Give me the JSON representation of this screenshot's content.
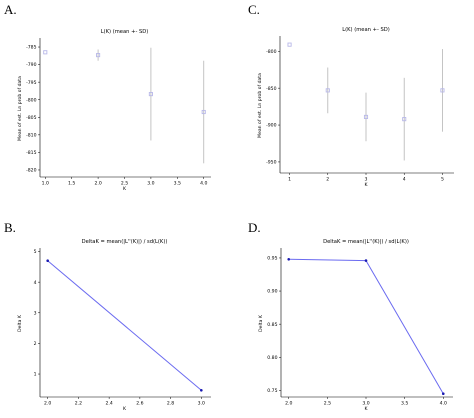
{
  "chart_data": [
    {
      "panel": "A.",
      "type": "scatter",
      "title": "L(K) (mean +- SD)",
      "xlabel": "K",
      "ylabel": "Mean of est. Ln prob of data",
      "xlim": [
        0.9,
        4.1
      ],
      "ylim": [
        -822,
        -783
      ],
      "xticks": [
        "1.0",
        "1.5",
        "2.0",
        "2.5",
        "3.0",
        "3.5",
        "4.0"
      ],
      "yticks": [
        "-785",
        "-790",
        "-795",
        "-800",
        "-805",
        "-810",
        "-815",
        "-820"
      ],
      "x": [
        1,
        2,
        3,
        4
      ],
      "y": [
        -786.5,
        -787.3,
        -798.4,
        -803.5
      ],
      "sd": [
        0.3,
        1.6,
        13.2,
        14.6
      ],
      "color": "#b8b8e8",
      "errorbar_color": "#bdbdbd"
    },
    {
      "panel": "C.",
      "type": "scatter",
      "title": "L(K) (mean +- SD)",
      "xlabel": "K",
      "ylabel": "Mean of est. Ln prob of data",
      "xlim": [
        0.75,
        5.25
      ],
      "ylim": [
        -965,
        -782
      ],
      "xticks": [
        "1",
        "2",
        "3",
        "4",
        "5"
      ],
      "yticks": [
        "-800",
        "-850",
        "-900",
        "-950"
      ],
      "x": [
        1,
        2,
        3,
        4,
        5
      ],
      "y": [
        -791,
        -853,
        -889,
        -892,
        -853
      ],
      "sd": [
        0.3,
        31,
        33,
        56,
        56
      ],
      "color": "#b8b8e8",
      "errorbar_color": "#bdbdbd"
    },
    {
      "panel": "B.",
      "type": "line",
      "title": "DeltaK = mean(|L''(K)|) / sd(L(K))",
      "xlabel": "K",
      "ylabel": "Delta K",
      "xlim": [
        1.95,
        3.05
      ],
      "ylim": [
        0.25,
        5.05
      ],
      "xticks": [
        "2.0",
        "2.2",
        "2.4",
        "2.6",
        "2.8",
        "3.0"
      ],
      "yticks": [
        "1",
        "2",
        "3",
        "4",
        "5"
      ],
      "x": [
        2,
        3
      ],
      "y": [
        4.7,
        0.47
      ],
      "color": "#6b6bf0",
      "marker_color": "#1a1ab0"
    },
    {
      "panel": "D.",
      "type": "line",
      "title": "DeltaK = mean(|L''(K)|) / sd(L(K))",
      "xlabel": "K",
      "ylabel": "Delta K",
      "xlim": [
        1.9,
        4.1
      ],
      "ylim": [
        0.74,
        0.962
      ],
      "xticks": [
        "2.0",
        "2.5",
        "3.0",
        "3.5",
        "4.0"
      ],
      "yticks": [
        "0.75",
        "0.80",
        "0.85",
        "0.90",
        "0.95"
      ],
      "x": [
        2,
        3,
        4
      ],
      "y": [
        0.948,
        0.946,
        0.745
      ],
      "color": "#6b6bf0",
      "marker_color": "#1a1ab0"
    }
  ]
}
